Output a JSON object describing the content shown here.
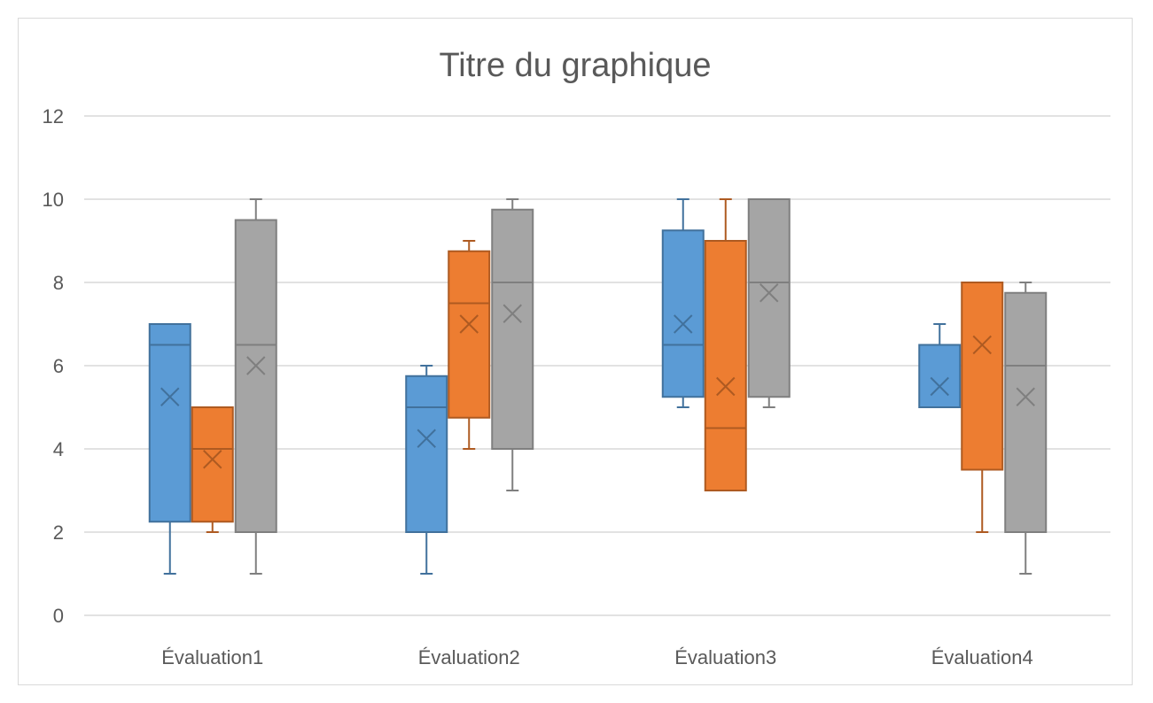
{
  "chart_data": {
    "type": "boxplot",
    "title": "Titre du graphique",
    "xlabel": "",
    "ylabel": "",
    "ylim": [
      0,
      12
    ],
    "yticks": [
      0,
      2,
      4,
      6,
      8,
      10,
      12
    ],
    "grid": true,
    "legend": "none",
    "categories": [
      "Évaluation1",
      "Évaluation2",
      "Évaluation3",
      "Évaluation4"
    ],
    "colors": {
      "fill": [
        "#5B9BD5",
        "#ED7D31",
        "#A5A5A5"
      ],
      "stroke": [
        "#41719C",
        "#AE5A21",
        "#7F7F7F"
      ]
    },
    "series": [
      {
        "boxes": [
          {
            "min": 1,
            "q1": 2.25,
            "median": 6.5,
            "q3": 7,
            "max": 7,
            "mean": 5.25
          },
          {
            "min": 1,
            "q1": 2,
            "median": 5,
            "q3": 5.75,
            "max": 6,
            "mean": 4.25
          },
          {
            "min": 5,
            "q1": 5.25,
            "median": 6.5,
            "q3": 9.25,
            "max": 10,
            "mean": 7
          },
          {
            "min": 5,
            "q1": 5,
            "median": 5,
            "q3": 6.5,
            "max": 7,
            "mean": 5.5
          }
        ]
      },
      {
        "boxes": [
          {
            "min": 2,
            "q1": 2.25,
            "median": 4,
            "q3": 5,
            "max": 5,
            "mean": 3.75
          },
          {
            "min": 4,
            "q1": 4.75,
            "median": 7.5,
            "q3": 8.75,
            "max": 9,
            "mean": 7
          },
          {
            "min": 3,
            "q1": 3,
            "median": 4.5,
            "q3": 9,
            "max": 10,
            "mean": 5.5
          },
          {
            "min": 2,
            "q1": 3.5,
            "median": 8,
            "q3": 8,
            "max": 8,
            "mean": 6.5
          }
        ]
      },
      {
        "boxes": [
          {
            "min": 1,
            "q1": 2,
            "median": 6.5,
            "q3": 9.5,
            "max": 10,
            "mean": 6
          },
          {
            "min": 3,
            "q1": 4,
            "median": 8,
            "q3": 9.75,
            "max": 10,
            "mean": 7.25
          },
          {
            "min": 5,
            "q1": 5.25,
            "median": 8,
            "q3": 10,
            "max": 10,
            "mean": 7.75
          },
          {
            "min": 1,
            "q1": 2,
            "median": 6,
            "q3": 7.75,
            "max": 8,
            "mean": 5.25
          }
        ]
      }
    ]
  }
}
